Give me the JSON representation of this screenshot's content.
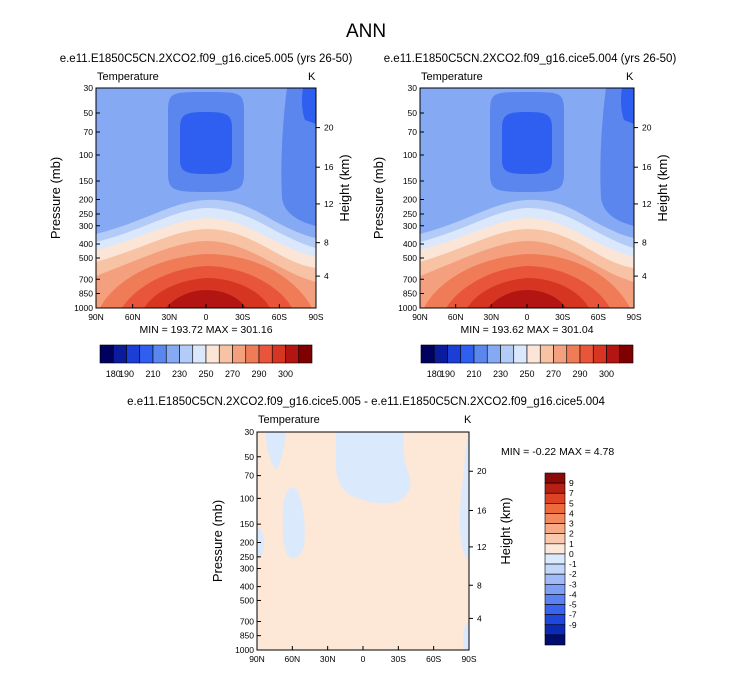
{
  "figure_title": "ANN",
  "colors": {
    "abs_palette": [
      "#00005f",
      "#0a1c9c",
      "#1a3ed6",
      "#2f5ff0",
      "#5a86ee",
      "#86a9f3",
      "#b3cbf7",
      "#dbe8fb",
      "#fbe5d7",
      "#f7c3a4",
      "#f4a07f",
      "#ef7b57",
      "#e9553a",
      "#d63522",
      "#b31612",
      "#7f0000"
    ],
    "diff_palette": [
      "#000c6e",
      "#0d2ab4",
      "#1f47dc",
      "#3a63f0",
      "#5c82f2",
      "#7e9ff4",
      "#a0bbf7",
      "#c2d7fa",
      "#dbe9fd",
      "#fde7d6",
      "#f9c9ad",
      "#f6aa85",
      "#f28a5e",
      "#ee6a3d",
      "#dc4325",
      "#b51f14",
      "#8a0a0a"
    ]
  },
  "chart_data": [
    {
      "type": "contour",
      "title": "e.e11.E1850C5CN.2XCO2.f09_g16.cice5.005 (yrs 26-50)",
      "left_label": "Temperature",
      "right_label": "K",
      "ylabel": "Pressure (mb)",
      "ylabel_right": "Height (km)",
      "x_ticks": [
        "90N",
        "60N",
        "30N",
        "0",
        "30S",
        "60S",
        "90S"
      ],
      "y_ticks": [
        "30",
        "50",
        "70",
        "100",
        "150",
        "200",
        "250",
        "300",
        "400",
        "500",
        "700",
        "850",
        "1000"
      ],
      "height_ticks": [
        "20",
        "16",
        "12",
        "8",
        "4"
      ],
      "min": 193.72,
      "max": 301.16,
      "stats": "MIN = 193.72   MAX = 301.16",
      "colorbar_labels": [
        "180",
        "190",
        "210",
        "230",
        "250",
        "270",
        "290",
        "300"
      ]
    },
    {
      "type": "contour",
      "title": "e.e11.E1850C5CN.2XCO2.f09_g16.cice5.004 (yrs 26-50)",
      "left_label": "Temperature",
      "right_label": "K",
      "ylabel": "Pressure (mb)",
      "ylabel_right": "Height (km)",
      "x_ticks": [
        "90N",
        "60N",
        "30N",
        "0",
        "30S",
        "60S",
        "90S"
      ],
      "y_ticks": [
        "30",
        "50",
        "70",
        "100",
        "150",
        "200",
        "250",
        "300",
        "400",
        "500",
        "700",
        "850",
        "1000"
      ],
      "height_ticks": [
        "20",
        "16",
        "12",
        "8",
        "4"
      ],
      "min": 193.62,
      "max": 301.04,
      "stats": "MIN = 193.62   MAX = 301.04",
      "colorbar_labels": [
        "180",
        "190",
        "210",
        "230",
        "250",
        "270",
        "290",
        "300"
      ]
    },
    {
      "type": "contour",
      "title": "e.e11.E1850C5CN.2XCO2.f09_g16.cice5.005 - e.e11.E1850C5CN.2XCO2.f09_g16.cice5.004",
      "left_label": "Temperature",
      "right_label": "K",
      "ylabel": "Pressure (mb)",
      "ylabel_right": "Height (km)",
      "x_ticks": [
        "90N",
        "60N",
        "30N",
        "0",
        "30S",
        "60S",
        "90S"
      ],
      "y_ticks": [
        "30",
        "50",
        "70",
        "100",
        "150",
        "200",
        "250",
        "300",
        "400",
        "500",
        "700",
        "850",
        "1000"
      ],
      "height_ticks": [
        "20",
        "16",
        "12",
        "8",
        "4"
      ],
      "min": -0.22,
      "max": 4.78,
      "stats": "MIN =  -0.22   MAX =   4.78",
      "colorbar_labels": [
        "9",
        "7",
        "5",
        "4",
        "3",
        "2",
        "1",
        "0",
        "-1",
        "-2",
        "-3",
        "-4",
        "-5",
        "-7",
        "-9"
      ]
    }
  ]
}
